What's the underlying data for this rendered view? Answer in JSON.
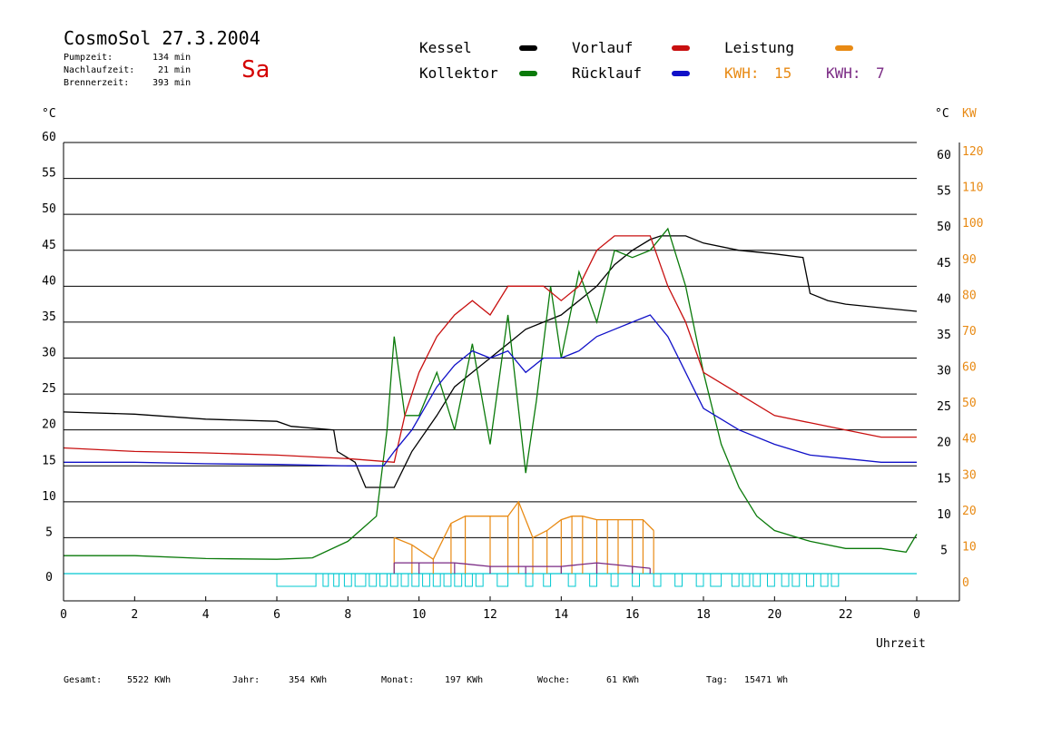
{
  "header": {
    "title": "CosmoSol 27.3.2004",
    "day": "Sa",
    "stats": [
      {
        "label": "Pumpzeit:",
        "value": "134 min"
      },
      {
        "label": "Nachlaufzeit:",
        "value": "21 min"
      },
      {
        "label": "Brennerzeit:",
        "value": "393 min"
      }
    ]
  },
  "legend": {
    "kessel": "Kessel",
    "kollektor": "Kollektor",
    "vorlauf": "Vorlauf",
    "ruecklauf": "Rücklauf",
    "leistung": "Leistung",
    "kwh1_label": "KWH:",
    "kwh1_value": "15",
    "kwh2_label": "KWH:",
    "kwh2_value": "7"
  },
  "axes": {
    "left_unit": "°C",
    "right_unit": "°C",
    "right_unit2": "KW",
    "xlabel": "Uhrzeit",
    "x_ticks": [
      "0",
      "2",
      "4",
      "6",
      "8",
      "10",
      "12",
      "14",
      "16",
      "18",
      "20",
      "22",
      "0"
    ],
    "y_ticks": [
      "0",
      "5",
      "10",
      "15",
      "20",
      "25",
      "30",
      "35",
      "40",
      "45",
      "50",
      "55",
      "60"
    ],
    "y_ticks_right": [
      "5",
      "10",
      "15",
      "20",
      "25",
      "30",
      "35",
      "40",
      "45",
      "50",
      "55",
      "60"
    ],
    "kw_ticks": [
      "0",
      "10",
      "20",
      "30",
      "40",
      "50",
      "60",
      "70",
      "80",
      "90",
      "100",
      "110",
      "120"
    ]
  },
  "footer": [
    {
      "label": "Gesamt:",
      "value": "5522 KWh"
    },
    {
      "label": "Jahr:",
      "value": "354 KWh"
    },
    {
      "label": "Monat:",
      "value": "197 KWh"
    },
    {
      "label": "Woche:",
      "value": "61 KWh"
    },
    {
      "label": "Tag:",
      "value": "15471 Wh"
    }
  ],
  "colors": {
    "kessel": "#000000",
    "kollektor": "#0a7a0a",
    "vorlauf": "#c81010",
    "ruecklauf": "#1010c8",
    "leistung": "#e88a14",
    "kwh2": "#7a2a84",
    "pump": "#00c8d0"
  },
  "chart_data": {
    "type": "line",
    "xlabel": "Uhrzeit",
    "ylabel": "°C",
    "xlim": [
      0,
      24
    ],
    "ylim": [
      0,
      60
    ],
    "y2lim": [
      0,
      120
    ],
    "grid": true,
    "series": [
      {
        "name": "Kessel",
        "color": "#000000",
        "x": [
          0,
          2,
          4,
          6,
          6.4,
          7.6,
          7.7,
          8.2,
          8.5,
          9.3,
          9.8,
          10.5,
          11,
          11.5,
          12,
          12.5,
          13,
          13.5,
          14,
          14.5,
          15,
          15.5,
          16,
          16.5,
          16.8,
          17,
          17.5,
          18,
          19,
          20,
          20.8,
          21,
          21.5,
          22,
          23,
          24
        ],
        "y": [
          22.5,
          22.2,
          21.5,
          21.2,
          20.5,
          20,
          17,
          15.5,
          12,
          12,
          17,
          22,
          26,
          28,
          30,
          32,
          34,
          35,
          36,
          38,
          40,
          43,
          45,
          46.5,
          47,
          47,
          47,
          46,
          45,
          44.5,
          44,
          39,
          38,
          37.5,
          37,
          36.5
        ]
      },
      {
        "name": "Kollektor",
        "color": "#0a7a0a",
        "x": [
          0,
          2,
          4,
          6,
          7,
          8,
          8.8,
          9.1,
          9.3,
          9.6,
          10,
          10.5,
          11,
          11.5,
          12,
          12.5,
          13,
          13.3,
          13.7,
          14,
          14.5,
          15,
          15.5,
          16,
          16.5,
          17,
          17.5,
          18,
          18.5,
          19,
          19.5,
          20,
          21,
          22,
          23,
          23.7,
          24
        ],
        "y": [
          2.5,
          2.5,
          2.1,
          2,
          2.2,
          4.5,
          8,
          20,
          33,
          22,
          22,
          28,
          20,
          32,
          18,
          36,
          14,
          24,
          40,
          30,
          42,
          35,
          45,
          44,
          45,
          48,
          40,
          28,
          18,
          12,
          8,
          6,
          4.5,
          3.5,
          3.5,
          3,
          5.5
        ]
      },
      {
        "name": "Vorlauf",
        "color": "#c81010",
        "x": [
          0,
          2,
          4,
          6,
          8,
          9.3,
          9.6,
          10,
          10.5,
          11,
          11.5,
          12,
          12.5,
          13,
          13.5,
          14,
          14.5,
          15,
          15.5,
          16,
          16.5,
          17,
          17.5,
          18,
          19,
          20,
          21,
          22,
          23,
          24
        ],
        "y": [
          17.5,
          17,
          16.8,
          16.5,
          16,
          15.5,
          22,
          28,
          33,
          36,
          38,
          36,
          40,
          40,
          40,
          38,
          40,
          45,
          47,
          47,
          47,
          40,
          35,
          28,
          25,
          22,
          21,
          20,
          19,
          19
        ]
      },
      {
        "name": "Rücklauf",
        "color": "#1010c8",
        "x": [
          0,
          2,
          4,
          6,
          8,
          9,
          9.3,
          9.8,
          10.5,
          11,
          11.5,
          12,
          12.5,
          13,
          13.5,
          14,
          14.5,
          15,
          15.5,
          16,
          16.5,
          17,
          17.5,
          18,
          19,
          20,
          21,
          22,
          23,
          24
        ],
        "y": [
          15.5,
          15.5,
          15.3,
          15.2,
          15,
          15,
          17,
          20,
          26,
          29,
          31,
          30,
          31,
          28,
          30,
          30,
          31,
          33,
          34,
          35,
          36,
          33,
          28,
          23,
          20,
          18,
          16.5,
          16,
          15.5,
          15.5
        ]
      },
      {
        "name": "Leistung",
        "axis": "right",
        "color": "#e88a14",
        "x": [
          9.3,
          9.8,
          10.4,
          10.9,
          11.3,
          12,
          12.5,
          12.8,
          13.2,
          13.6,
          14,
          14.3,
          14.6,
          15,
          15.3,
          15.6,
          16,
          16.3,
          16.6
        ],
        "y": [
          10,
          8,
          4,
          14,
          16,
          16,
          16,
          20,
          10,
          12,
          15,
          16,
          16,
          15,
          15,
          15,
          15,
          15,
          12
        ]
      },
      {
        "name": "KWH",
        "axis": "right",
        "color": "#7a2a84",
        "x": [
          9.3,
          10,
          11,
          12,
          13,
          14,
          15,
          16,
          16.5
        ],
        "y": [
          3,
          3,
          3,
          2,
          2,
          2,
          3,
          2,
          1.5
        ]
      }
    ]
  }
}
